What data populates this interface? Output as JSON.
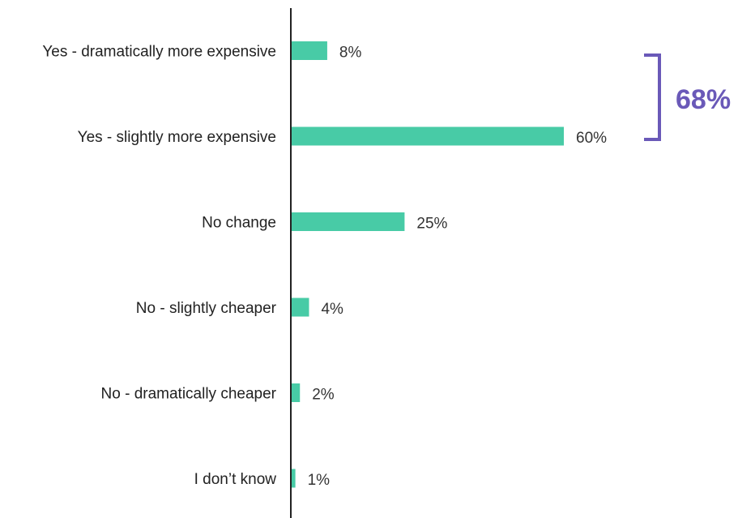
{
  "chart_data": {
    "type": "bar",
    "orientation": "horizontal",
    "categories": [
      "Yes - dramatically more expensive",
      "Yes - slightly more expensive",
      "No change",
      "No - slightly cheaper",
      "No - dramatically cheaper",
      "I don’t know"
    ],
    "values": [
      8,
      60,
      25,
      4,
      2,
      1
    ],
    "value_labels": [
      "8%",
      "60%",
      "25%",
      "4%",
      "2%",
      "1%"
    ],
    "xlim": [
      0,
      60
    ],
    "grid": false,
    "legend": "none",
    "annotation": {
      "type": "bracket",
      "spans_categories": [
        "Yes - dramatically more expensive",
        "Yes - slightly more expensive"
      ],
      "label": "68%"
    }
  },
  "colors": {
    "bar": "#48CBA6",
    "axis": "#222222",
    "bracket": "#6A59B8"
  }
}
